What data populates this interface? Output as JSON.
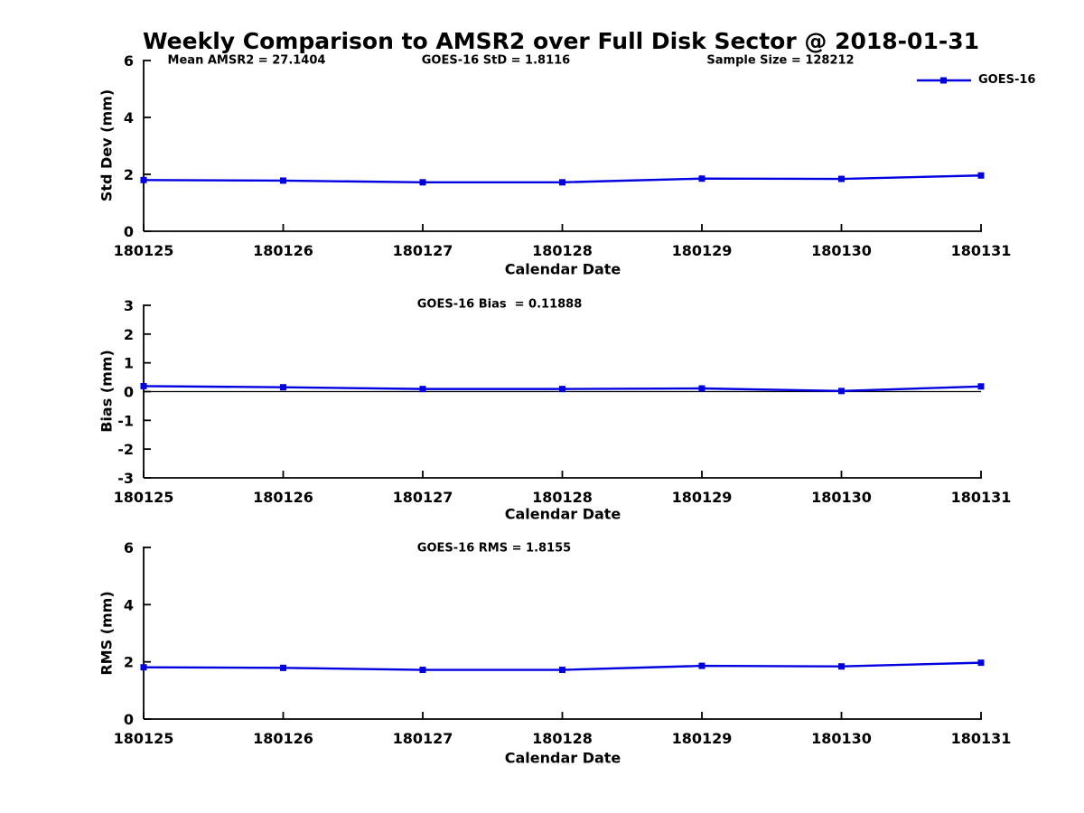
{
  "title": "Weekly Comparison to AMSR2 over Full Disk Sector @ 2018-01-31",
  "legend": {
    "label": "GOES-16",
    "position": "top-right"
  },
  "colors": {
    "series": "#0000e0",
    "axis": "#000000",
    "text": "#000000",
    "background": "#ffffff"
  },
  "chart_data": [
    {
      "type": "line",
      "name": "std-dev-subplot",
      "categories": [
        "180125",
        "180126",
        "180127",
        "180128",
        "180129",
        "180130",
        "180131"
      ],
      "series": [
        {
          "name": "GOES-16",
          "values": [
            1.8,
            1.78,
            1.72,
            1.72,
            1.85,
            1.84,
            1.96
          ]
        }
      ],
      "ylabel": "Std Dev (mm)",
      "xlabel": "Calendar Date",
      "ylim": [
        0,
        6
      ],
      "yticks": [
        0,
        2,
        4,
        6
      ],
      "grid": false,
      "zero_line": false,
      "legend_entry": "GOES-16",
      "annotations": [
        "Mean AMSR2 = 27.1404",
        "GOES-16 StD = 1.8116",
        "Sample Size = 128212"
      ]
    },
    {
      "type": "line",
      "name": "bias-subplot",
      "categories": [
        "180125",
        "180126",
        "180127",
        "180128",
        "180129",
        "180130",
        "180131"
      ],
      "series": [
        {
          "name": "GOES-16",
          "values": [
            0.19,
            0.15,
            0.09,
            0.09,
            0.11,
            0.02,
            0.18
          ]
        }
      ],
      "ylabel": "Bias (mm)",
      "xlabel": "Calendar Date",
      "ylim": [
        -3,
        3
      ],
      "yticks": [
        -3,
        -2,
        -1,
        0,
        1,
        2,
        3
      ],
      "grid": false,
      "zero_line": true,
      "annotations": [
        "GOES-16 Bias  = 0.11888"
      ]
    },
    {
      "type": "line",
      "name": "rms-subplot",
      "categories": [
        "180125",
        "180126",
        "180127",
        "180128",
        "180129",
        "180130",
        "180131"
      ],
      "series": [
        {
          "name": "GOES-16",
          "values": [
            1.81,
            1.79,
            1.72,
            1.72,
            1.86,
            1.84,
            1.97
          ]
        }
      ],
      "ylabel": "RMS (mm)",
      "xlabel": "Calendar Date",
      "ylim": [
        0,
        6
      ],
      "yticks": [
        0,
        2,
        4,
        6
      ],
      "grid": false,
      "zero_line": false,
      "annotations": [
        "GOES-16 RMS = 1.8155"
      ]
    }
  ]
}
